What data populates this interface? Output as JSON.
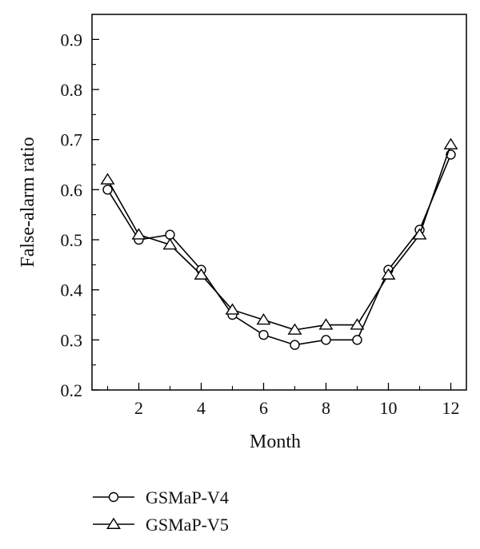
{
  "chart_data": {
    "type": "line",
    "title": "",
    "xlabel": "Month",
    "ylabel": "False-alarm ratio",
    "xlim": [
      0.5,
      12.5
    ],
    "ylim": [
      0.2,
      0.95
    ],
    "x_ticks": [
      2,
      4,
      6,
      8,
      10,
      12
    ],
    "x_tick_labels": [
      "2",
      "4",
      "6",
      "8",
      "10",
      "12"
    ],
    "y_ticks": [
      0.2,
      0.3,
      0.4,
      0.5,
      0.6,
      0.7,
      0.8,
      0.9
    ],
    "y_tick_labels": [
      "0.2",
      "0.3",
      "0.4",
      "0.5",
      "0.6",
      "0.7",
      "0.8",
      "0.9"
    ],
    "grid": false,
    "legend_position": "bottom-left, below plot",
    "x": [
      1,
      2,
      3,
      4,
      5,
      6,
      7,
      8,
      9,
      10,
      11,
      12
    ],
    "series": [
      {
        "name": "GSMaP-V4",
        "marker": "circle",
        "values": [
          0.6,
          0.5,
          0.51,
          0.44,
          0.35,
          0.31,
          0.29,
          0.3,
          0.3,
          0.44,
          0.52,
          0.67
        ]
      },
      {
        "name": "GSMaP-V5",
        "marker": "triangle",
        "values": [
          0.62,
          0.51,
          0.49,
          0.43,
          0.36,
          0.34,
          0.32,
          0.33,
          0.33,
          0.43,
          0.51,
          0.69
        ]
      }
    ]
  },
  "colors": {
    "line": "#000000",
    "marker_fill": "#ffffff",
    "background": "#ffffff"
  }
}
